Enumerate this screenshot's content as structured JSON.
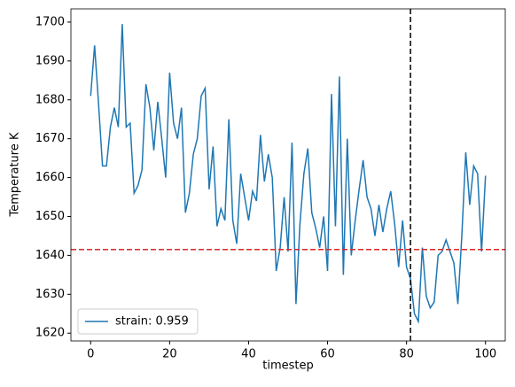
{
  "chart_data": {
    "type": "line",
    "xlabel": "timestep",
    "ylabel": "Temperature K",
    "x": [
      0,
      1,
      2,
      3,
      4,
      5,
      6,
      7,
      8,
      9,
      10,
      11,
      12,
      13,
      14,
      15,
      16,
      17,
      18,
      19,
      20,
      21,
      22,
      23,
      24,
      25,
      26,
      27,
      28,
      29,
      30,
      31,
      32,
      33,
      34,
      35,
      36,
      37,
      38,
      39,
      40,
      41,
      42,
      43,
      44,
      45,
      46,
      47,
      48,
      49,
      50,
      51,
      52,
      53,
      54,
      55,
      56,
      57,
      58,
      59,
      60,
      61,
      62,
      63,
      64,
      65,
      66,
      67,
      68,
      69,
      70,
      71,
      72,
      73,
      74,
      75,
      76,
      77,
      78,
      79,
      80,
      81,
      82,
      83,
      84,
      85,
      86,
      87,
      88,
      89,
      90,
      91,
      92,
      93,
      94,
      95,
      96,
      97,
      98,
      99,
      100
    ],
    "series": [
      {
        "name": "strain: 0.959",
        "color": "#1f77b4",
        "values": [
          1681,
          1694,
          1679,
          1663,
          1663,
          1673,
          1678,
          1673,
          1699.5,
          1673,
          1674,
          1656,
          1658,
          1662,
          1684,
          1678,
          1667,
          1679.5,
          1670,
          1660,
          1687,
          1674,
          1670,
          1678,
          1651,
          1656,
          1666,
          1670,
          1681,
          1683,
          1657,
          1668,
          1647.5,
          1652,
          1649,
          1675,
          1649,
          1643,
          1661,
          1655,
          1649,
          1656.5,
          1654,
          1671,
          1659,
          1666,
          1660,
          1636,
          1642,
          1655,
          1641,
          1669,
          1627.5,
          1648,
          1661,
          1667.5,
          1651,
          1647,
          1642,
          1650,
          1636,
          1681.5,
          1647.5,
          1686,
          1635,
          1670,
          1640,
          1649,
          1657,
          1664.5,
          1655,
          1652,
          1645,
          1653,
          1646,
          1652,
          1656.5,
          1648,
          1637,
          1649,
          1637,
          1634,
          1625,
          1623,
          1642,
          1629.5,
          1626.5,
          1628,
          1640,
          1641,
          1644,
          1641,
          1638,
          1627.5,
          1645,
          1666.5,
          1653,
          1663,
          1661,
          1641,
          1660.5
        ]
      }
    ],
    "hlines": [
      {
        "value": 1641.5,
        "color": "#d62728"
      }
    ],
    "vlines": [
      {
        "value": 81,
        "color": "#000000"
      }
    ],
    "xlim": [
      -5,
      105
    ],
    "xticks": [
      0,
      20,
      40,
      60,
      80,
      100
    ],
    "ylim": [
      1618,
      1703.4
    ],
    "yticks": [
      1620,
      1630,
      1640,
      1650,
      1660,
      1670,
      1680,
      1690,
      1700
    ],
    "legend": "lower left"
  }
}
